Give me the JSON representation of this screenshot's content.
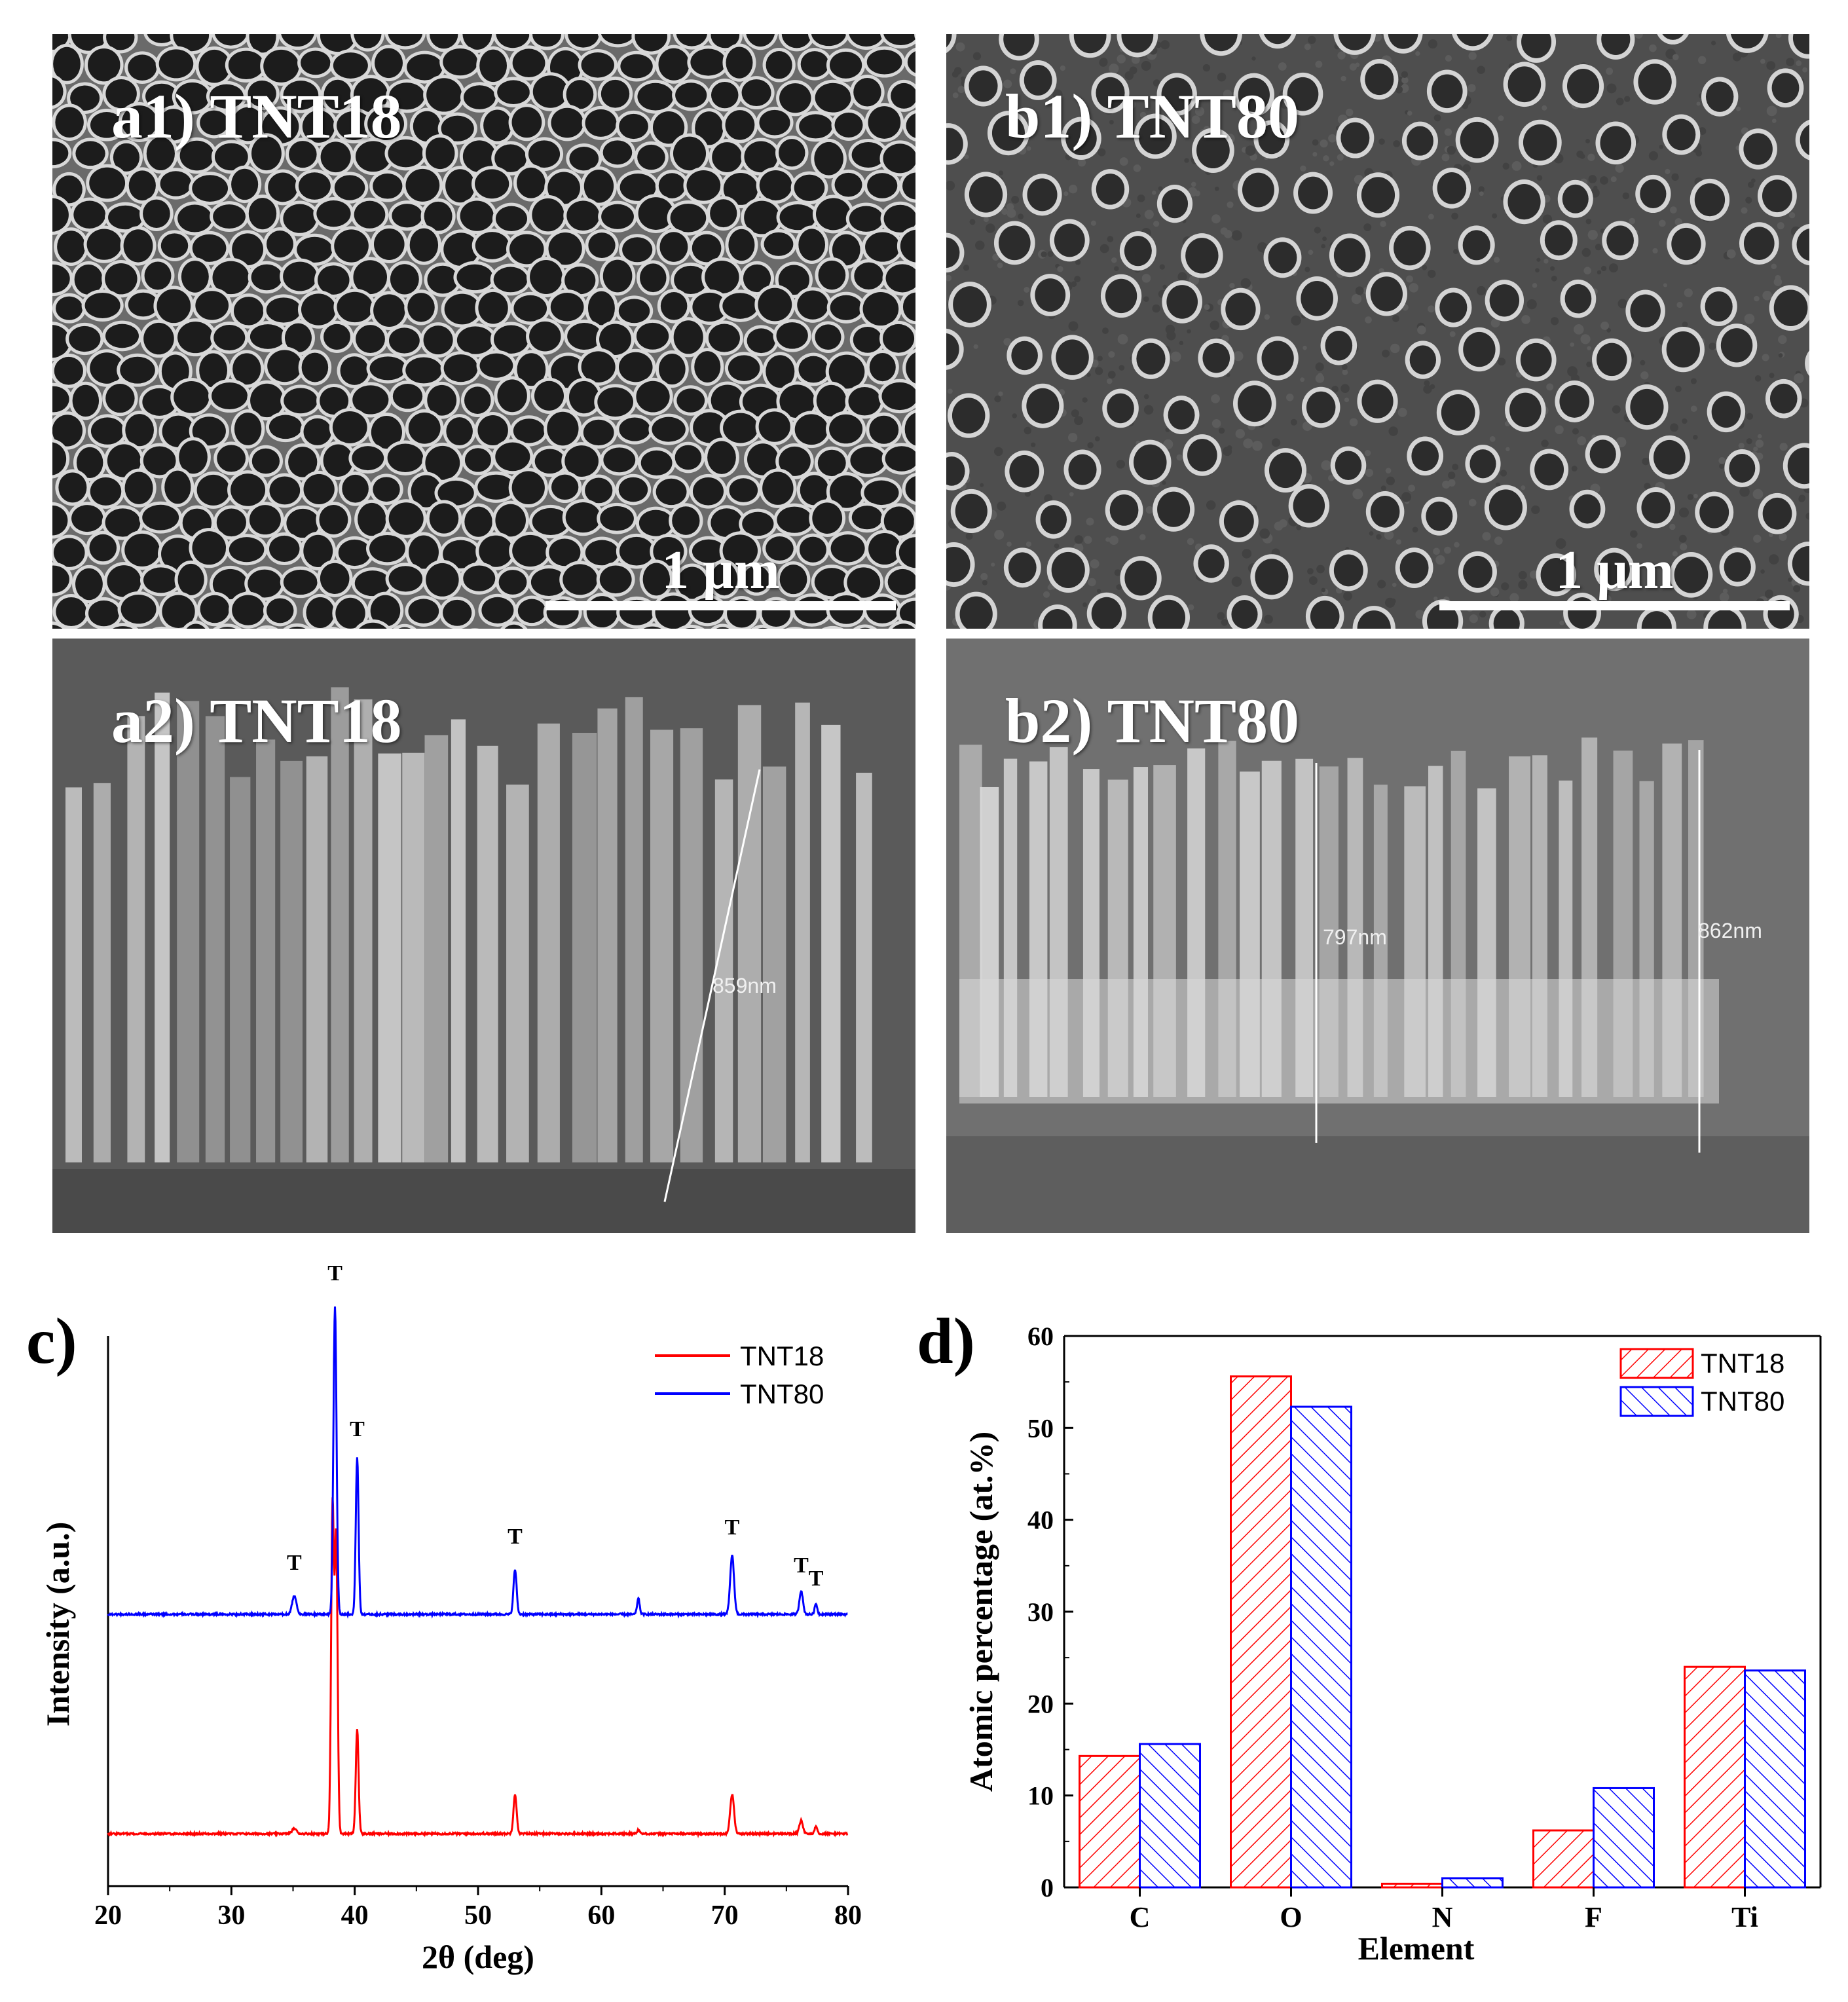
{
  "panels": {
    "a1": {
      "label": "a1) TNT18",
      "scale_bar": "1 μm"
    },
    "b1": {
      "label": "b1) TNT80",
      "scale_bar": "1 μm"
    },
    "a2": {
      "label": "a2) TNT18",
      "measurements": [
        "859nm"
      ]
    },
    "b2": {
      "label": "b2) TNT80",
      "measurements": [
        "797nm",
        "862nm"
      ]
    }
  },
  "chart_data": [
    {
      "panel_label": "c)",
      "type": "line",
      "xlabel": "2θ (deg)",
      "ylabel": "Intensity (a.u.)",
      "xlim": [
        20,
        80
      ],
      "xticks": [
        "20",
        "30",
        "40",
        "50",
        "60",
        "70",
        "80"
      ],
      "legend_position": "top-right",
      "peak_label": "T",
      "peak_annotations": [
        35.1,
        38.4,
        40.2,
        53.0,
        70.6,
        76.2,
        77.4
      ],
      "series": [
        {
          "name": "TNT18",
          "color": "#ff0000",
          "baseline": 0,
          "peaks": [
            {
              "x": 35.1,
              "y": 4
            },
            {
              "x": 38.2,
              "y": 250
            },
            {
              "x": 38.5,
              "y": 225
            },
            {
              "x": 40.2,
              "y": 80
            },
            {
              "x": 53.0,
              "y": 30
            },
            {
              "x": 63.0,
              "y": 3
            },
            {
              "x": 70.6,
              "y": 30
            },
            {
              "x": 76.2,
              "y": 10
            },
            {
              "x": 77.4,
              "y": 6
            }
          ]
        },
        {
          "name": "TNT80",
          "color": "#0000ff",
          "baseline": 0,
          "peaks": [
            {
              "x": 35.1,
              "y": 14
            },
            {
              "x": 38.4,
              "y": 235
            },
            {
              "x": 40.2,
              "y": 120
            },
            {
              "x": 53.0,
              "y": 34
            },
            {
              "x": 63.0,
              "y": 12
            },
            {
              "x": 70.6,
              "y": 45
            },
            {
              "x": 76.2,
              "y": 18
            },
            {
              "x": 77.4,
              "y": 8
            }
          ]
        }
      ]
    },
    {
      "panel_label": "d)",
      "type": "bar",
      "xlabel": "Element",
      "ylabel": "Atomic percentage (at.%)",
      "ylim": [
        0,
        60
      ],
      "yticks": [
        "0",
        "10",
        "20",
        "30",
        "40",
        "50",
        "60"
      ],
      "legend_position": "top-right",
      "categories": [
        "C",
        "O",
        "N",
        "F",
        "Ti"
      ],
      "series": [
        {
          "name": "TNT18",
          "color": "#ff0000",
          "values": [
            14.3,
            55.6,
            0.4,
            6.2,
            24.0
          ]
        },
        {
          "name": "TNT80",
          "color": "#0000ff",
          "values": [
            15.6,
            52.3,
            1.0,
            10.8,
            23.6
          ]
        }
      ]
    }
  ]
}
